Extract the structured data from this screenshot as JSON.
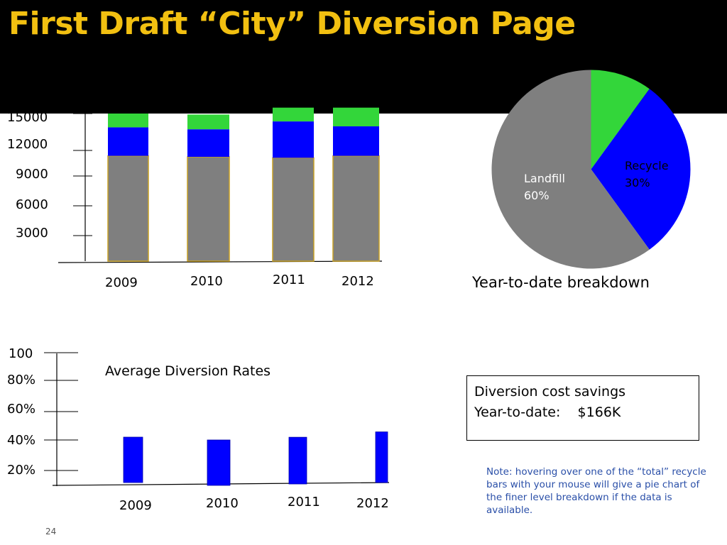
{
  "slide": {
    "title": "First Draft “City” Diversion Page",
    "page_number": "24"
  },
  "colors": {
    "header_bg": "#000000",
    "title": "#f2c011",
    "landfill": "#7f7f7f",
    "recycle": "#0000ff",
    "other": "#33d63a",
    "bar_outline": "#c9a227",
    "note_text": "#2a4fa8"
  },
  "tonnage_chart": {
    "y_labels": [
      "15000",
      "12000",
      "9000",
      "6000",
      "3000"
    ],
    "x_labels": [
      "2009",
      "2010",
      "2011",
      "2012"
    ]
  },
  "pie_chart": {
    "landfill_label": "Landfill",
    "landfill_pct": "60%",
    "recycle_label": "Recycle",
    "recycle_pct": "30%",
    "caption": "Year-to-date  breakdown"
  },
  "rates_chart": {
    "title": "Average Diversion Rates",
    "y_labels": [
      "100",
      "80%",
      "60%",
      "40%",
      "20%"
    ],
    "x_labels": [
      "2009",
      "2010",
      "2011",
      "2012"
    ]
  },
  "savings_box": {
    "line1": "Diversion cost savings",
    "line2": "Year-to-date:    $166K"
  },
  "note": "Note: hovering over one of the “total” recycle bars with your mouse will give a pie chart of the finer level breakdown if the data is available.",
  "chart_data": [
    {
      "type": "bar",
      "stacked": true,
      "categories": [
        "2009",
        "2010",
        "2011",
        "2012"
      ],
      "series": [
        {
          "color": "#7f7f7f",
          "values": [
            10700,
            10600,
            10500,
            10700
          ]
        },
        {
          "color": "#0000ff",
          "values": [
            2900,
            2800,
            3700,
            3000
          ]
        },
        {
          "color": "#33d63a",
          "values": [
            1400,
            1500,
            1400,
            1900
          ]
        }
      ],
      "ylim": [
        0,
        15000
      ]
    },
    {
      "type": "pie",
      "slices": [
        {
          "label": "Landfill",
          "value": 60,
          "color": "#7f7f7f"
        },
        {
          "label": "Recycle",
          "value": 30,
          "color": "#0000ff"
        },
        {
          "label": "",
          "value": 10,
          "color": "#33d63a"
        }
      ]
    },
    {
      "type": "bar",
      "categories": [
        "2009",
        "2010",
        "2011",
        "2012"
      ],
      "values": [
        0.4,
        0.4,
        0.41,
        0.44
      ],
      "ylim": [
        0,
        1.0
      ]
    }
  ]
}
